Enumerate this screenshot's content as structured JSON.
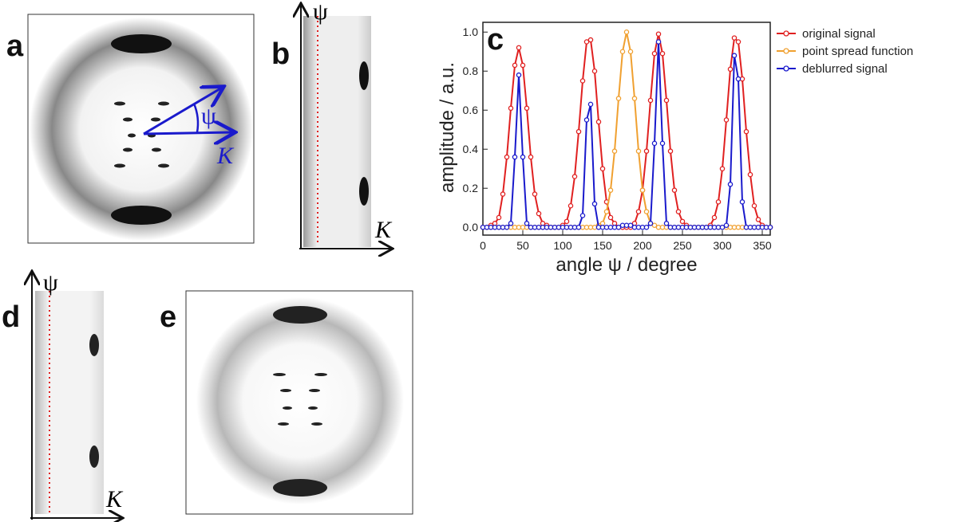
{
  "chart_data": {
    "type": "line",
    "panel_label": "c",
    "xlabel": "angle ψ / degree",
    "ylabel": "amplitude / a.u.",
    "x": [
      0,
      5,
      10,
      15,
      20,
      25,
      30,
      35,
      40,
      45,
      50,
      55,
      60,
      65,
      70,
      75,
      80,
      85,
      90,
      95,
      100,
      105,
      110,
      115,
      120,
      125,
      130,
      135,
      140,
      145,
      150,
      155,
      160,
      165,
      170,
      175,
      180,
      185,
      190,
      195,
      200,
      205,
      210,
      215,
      220,
      225,
      230,
      235,
      240,
      245,
      250,
      255,
      260,
      265,
      270,
      275,
      280,
      285,
      290,
      295,
      300,
      305,
      310,
      315,
      320,
      325,
      330,
      335,
      340,
      345,
      350,
      355,
      360
    ],
    "series": [
      {
        "name": "original signal",
        "color": "#e02020",
        "values": [
          0,
          0,
          0.01,
          0.02,
          0.05,
          0.17,
          0.36,
          0.61,
          0.83,
          0.92,
          0.83,
          0.61,
          0.36,
          0.17,
          0.07,
          0.02,
          0.01,
          0,
          0,
          0,
          0.01,
          0.03,
          0.11,
          0.26,
          0.49,
          0.75,
          0.95,
          0.96,
          0.8,
          0.54,
          0.3,
          0.13,
          0.05,
          0.02,
          0,
          0,
          0,
          0,
          0.02,
          0.08,
          0.19,
          0.39,
          0.65,
          0.89,
          0.99,
          0.89,
          0.65,
          0.39,
          0.19,
          0.08,
          0.03,
          0.01,
          0,
          0,
          0,
          0,
          0,
          0.01,
          0.05,
          0.13,
          0.3,
          0.55,
          0.81,
          0.97,
          0.95,
          0.76,
          0.49,
          0.27,
          0.11,
          0.04,
          0.01,
          0,
          0
        ]
      },
      {
        "name": "point spread function",
        "color": "#f0a030",
        "values": [
          0,
          0,
          0,
          0,
          0,
          0,
          0,
          0,
          0,
          0,
          0,
          0,
          0,
          0,
          0,
          0,
          0,
          0,
          0,
          0,
          0,
          0,
          0,
          0,
          0,
          0,
          0,
          0,
          0,
          0.01,
          0.02,
          0.08,
          0.19,
          0.39,
          0.66,
          0.9,
          1.0,
          0.9,
          0.66,
          0.39,
          0.19,
          0.08,
          0.02,
          0.01,
          0,
          0,
          0,
          0,
          0,
          0,
          0,
          0,
          0,
          0,
          0,
          0,
          0,
          0,
          0,
          0,
          0,
          0,
          0,
          0,
          0,
          0,
          0,
          0,
          0,
          0,
          0,
          0,
          0
        ]
      },
      {
        "name": "deblurred signal",
        "color": "#1a1acc",
        "values": [
          0,
          0,
          0,
          0,
          0,
          0,
          0,
          0.02,
          0.36,
          0.78,
          0.36,
          0.02,
          0,
          0,
          0,
          0,
          0,
          0,
          0,
          0,
          0,
          0,
          0,
          0,
          0,
          0.06,
          0.55,
          0.63,
          0.12,
          0,
          0,
          0,
          0,
          0,
          0,
          0.01,
          0.01,
          0.01,
          0,
          0,
          0,
          0,
          0.02,
          0.43,
          0.95,
          0.43,
          0.02,
          0,
          0,
          0,
          0,
          0,
          0,
          0,
          0,
          0,
          0,
          0,
          0,
          0,
          0,
          0.01,
          0.22,
          0.88,
          0.76,
          0.13,
          0,
          0,
          0,
          0,
          0,
          0,
          0
        ]
      }
    ],
    "xlim": [
      0,
      360
    ],
    "xticks": [
      0,
      50,
      100,
      150,
      200,
      250,
      300,
      350
    ],
    "ylim": [
      -0.04,
      1.05
    ],
    "yticks": [
      {
        "value": 0,
        "label": "0.0"
      },
      0.2,
      0.4,
      0.6,
      0.8,
      {
        "value": 1,
        "label": "1.0"
      }
    ],
    "legend": "upper right"
  },
  "panels": [
    {
      "label": "a",
      "psi": "ψ",
      "k": "K"
    },
    {
      "label": "b",
      "psi": "ψ",
      "k": "K"
    },
    {
      "label": "d",
      "psi": "ψ",
      "k": "K"
    },
    {
      "label": "e"
    }
  ]
}
